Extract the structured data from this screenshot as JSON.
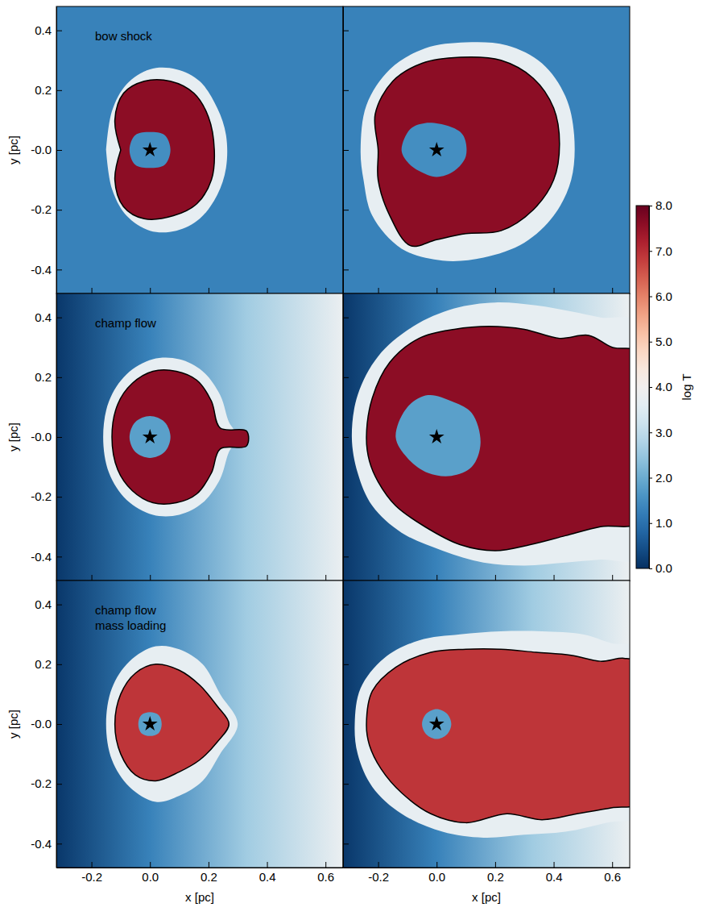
{
  "chart_data": [
    {
      "type": "map",
      "title": "bow shock",
      "ylabel": "y [pc]",
      "xlim": [
        -0.32,
        0.66
      ],
      "ylim": [
        -0.48,
        0.48
      ],
      "xticks": [
        -0.2,
        {
          "value": 0,
          "label": "0.0"
        },
        0.2,
        0.4,
        0.6
      ],
      "yticks": [
        -0.4,
        -0.2,
        {
          "value": 0,
          "label": "-0.0"
        },
        0.2,
        0.4
      ],
      "tick_labels": "y",
      "background_x": [
        -0.32,
        0.66
      ],
      "background_log_t": [
        1.3,
        1.3
      ],
      "shell": {
        "x": [
          -0.15,
          -0.13,
          -0.08,
          0.0,
          0.09,
          0.17,
          0.23,
          0.26,
          0.26,
          0.23,
          0.17,
          0.09,
          0.0,
          -0.08,
          -0.13,
          -0.15
        ],
        "y": [
          0.0,
          0.13,
          0.22,
          0.27,
          0.27,
          0.23,
          0.14,
          0.05,
          -0.06,
          -0.15,
          -0.23,
          -0.27,
          -0.27,
          -0.22,
          -0.13,
          0.0
        ]
      },
      "shell_log_t": 3.7,
      "contour": {
        "x": [
          -0.1,
          -0.12,
          -0.09,
          -0.02,
          0.07,
          0.15,
          0.2,
          0.22,
          0.21,
          0.16,
          0.08,
          -0.02,
          -0.09,
          -0.12,
          -0.1
        ],
        "y": [
          0.0,
          0.1,
          0.19,
          0.23,
          0.23,
          0.19,
          0.11,
          0.0,
          -0.1,
          -0.18,
          -0.22,
          -0.23,
          -0.19,
          -0.1,
          0.0
        ]
      },
      "bubble_log_t": 7.6,
      "wind_region": {
        "x": [
          -0.07,
          -0.05,
          0.0,
          0.05,
          0.07,
          0.05,
          0.0,
          -0.05
        ],
        "y": [
          0.0,
          0.05,
          0.06,
          0.05,
          0.0,
          -0.05,
          -0.06,
          -0.05
        ]
      },
      "wind_log_t": 1.5,
      "star": {
        "x": 0,
        "y": 0
      }
    },
    {
      "type": "map",
      "xlim": [
        -0.32,
        0.66
      ],
      "ylim": [
        -0.48,
        0.48
      ],
      "xticks": [
        -0.2,
        {
          "value": 0,
          "label": "0.0"
        },
        0.2,
        0.4,
        0.6
      ],
      "yticks": [
        -0.4,
        -0.2,
        {
          "value": 0,
          "label": "-0.0"
        },
        0.2,
        0.4
      ],
      "tick_labels": false,
      "background_x": [
        -0.32,
        0.66
      ],
      "background_log_t": [
        1.3,
        1.3
      ],
      "shell": {
        "x": [
          -0.26,
          -0.24,
          -0.16,
          -0.04,
          0.1,
          0.24,
          0.36,
          0.44,
          0.47,
          0.46,
          0.4,
          0.3,
          0.16,
          0.02,
          -0.12,
          -0.22,
          -0.25
        ],
        "y": [
          0.0,
          0.15,
          0.27,
          0.34,
          0.36,
          0.35,
          0.29,
          0.18,
          0.05,
          -0.1,
          -0.22,
          -0.31,
          -0.36,
          -0.37,
          -0.33,
          -0.22,
          -0.1
        ]
      },
      "shell_log_t": 3.7,
      "contour": {
        "x": [
          -0.2,
          -0.21,
          -0.15,
          -0.05,
          0.08,
          0.22,
          0.33,
          0.4,
          0.42,
          0.4,
          0.33,
          0.22,
          0.1,
          0.0,
          -0.09,
          -0.16,
          -0.2
        ],
        "y": [
          0.0,
          0.12,
          0.23,
          0.29,
          0.31,
          0.3,
          0.24,
          0.14,
          0.02,
          -0.1,
          -0.2,
          -0.27,
          -0.28,
          -0.3,
          -0.32,
          -0.22,
          -0.1
        ]
      },
      "bubble_log_t": 7.6,
      "wind_region": {
        "x": [
          -0.12,
          -0.09,
          -0.04,
          0.04,
          0.09,
          0.1,
          0.06,
          0.0,
          -0.06,
          -0.1
        ],
        "y": [
          0.0,
          0.07,
          0.09,
          0.08,
          0.05,
          -0.02,
          -0.07,
          -0.09,
          -0.07,
          -0.04
        ]
      },
      "wind_log_t": 1.5,
      "star": {
        "x": 0,
        "y": 0
      }
    },
    {
      "type": "map",
      "title": "champ flow",
      "ylabel": "y [pc]",
      "xlim": [
        -0.32,
        0.66
      ],
      "ylim": [
        -0.48,
        0.48
      ],
      "xticks": [
        -0.2,
        {
          "value": 0,
          "label": "0.0"
        },
        0.2,
        0.4,
        0.6
      ],
      "yticks": [
        -0.4,
        -0.2,
        {
          "value": 0,
          "label": "-0.0"
        },
        0.2,
        0.4
      ],
      "tick_labels": "y",
      "background_x": [
        -0.32,
        0.0,
        0.33,
        0.66
      ],
      "background_log_t": [
        0.1,
        1.3,
        2.6,
        3.8
      ],
      "shell": {
        "x": [
          -0.16,
          -0.14,
          -0.08,
          0.01,
          0.1,
          0.18,
          0.24,
          0.27,
          0.3,
          0.27,
          0.24,
          0.18,
          0.1,
          0.01,
          -0.08,
          -0.14
        ],
        "y": [
          0.0,
          0.12,
          0.21,
          0.26,
          0.26,
          0.22,
          0.14,
          0.05,
          0.0,
          -0.05,
          -0.14,
          -0.22,
          -0.26,
          -0.26,
          -0.21,
          -0.12
        ]
      },
      "shell_log_t": 3.7,
      "contour": {
        "x": [
          -0.13,
          -0.11,
          -0.06,
          0.01,
          0.09,
          0.16,
          0.21,
          0.24,
          0.33,
          0.33,
          0.24,
          0.21,
          0.16,
          0.09,
          0.01,
          -0.06,
          -0.11
        ],
        "y": [
          0.0,
          0.11,
          0.18,
          0.22,
          0.22,
          0.19,
          0.12,
          0.03,
          0.02,
          -0.03,
          -0.04,
          -0.12,
          -0.19,
          -0.22,
          -0.22,
          -0.18,
          -0.11
        ]
      },
      "bubble_log_t": 7.6,
      "wind_region": {
        "x": [
          -0.07,
          -0.05,
          0.0,
          0.05,
          0.07,
          0.05,
          0.0,
          -0.05
        ],
        "y": [
          0.0,
          0.05,
          0.07,
          0.05,
          0.0,
          -0.05,
          -0.07,
          -0.05
        ]
      },
      "wind_log_t": 1.8,
      "star": {
        "x": 0,
        "y": 0
      }
    },
    {
      "type": "map",
      "xlim": [
        -0.32,
        0.66
      ],
      "ylim": [
        -0.48,
        0.48
      ],
      "xticks": [
        -0.2,
        {
          "value": 0,
          "label": "0.0"
        },
        0.2,
        0.4,
        0.6
      ],
      "yticks": [
        -0.4,
        -0.2,
        {
          "value": 0,
          "label": "-0.0"
        },
        0.2,
        0.4
      ],
      "tick_labels": false,
      "background_x": [
        -0.32,
        0.0,
        0.33,
        0.66
      ],
      "background_log_t": [
        0.1,
        1.3,
        2.6,
        3.8
      ],
      "shell": {
        "x": [
          -0.29,
          -0.27,
          -0.2,
          -0.08,
          0.06,
          0.2,
          0.34,
          0.46,
          0.56,
          0.7,
          0.7,
          0.56,
          0.44,
          0.3,
          0.16,
          0.02,
          -0.12,
          -0.22,
          -0.27
        ],
        "y": [
          0.0,
          0.14,
          0.27,
          0.37,
          0.43,
          0.45,
          0.44,
          0.42,
          0.4,
          0.38,
          -0.4,
          -0.41,
          -0.42,
          -0.43,
          -0.42,
          -0.38,
          -0.32,
          -0.23,
          -0.12
        ]
      },
      "shell_log_t": 3.7,
      "contour": {
        "x": [
          -0.24,
          -0.22,
          -0.16,
          -0.06,
          0.06,
          0.18,
          0.3,
          0.42,
          0.52,
          0.6,
          0.7,
          0.7,
          0.56,
          0.44,
          0.32,
          0.2,
          0.08,
          -0.04,
          -0.14,
          -0.2,
          -0.23
        ],
        "y": [
          0.0,
          0.13,
          0.25,
          0.33,
          0.36,
          0.37,
          0.36,
          0.33,
          0.34,
          0.3,
          0.28,
          -0.28,
          -0.3,
          -0.33,
          -0.36,
          -0.38,
          -0.36,
          -0.3,
          -0.23,
          -0.15,
          -0.08
        ]
      },
      "bubble_log_t": 7.6,
      "wind_region": {
        "x": [
          -0.14,
          -0.1,
          -0.03,
          0.05,
          0.12,
          0.15,
          0.12,
          0.05,
          -0.03,
          -0.1
        ],
        "y": [
          0.0,
          0.1,
          0.14,
          0.12,
          0.08,
          -0.02,
          -0.1,
          -0.13,
          -0.12,
          -0.07
        ]
      },
      "wind_log_t": 1.8,
      "star": {
        "x": 0,
        "y": 0
      }
    },
    {
      "type": "map",
      "title": [
        "champ flow",
        "mass loading"
      ],
      "xlabel": "x [pc]",
      "ylabel": "y [pc]",
      "xlim": [
        -0.32,
        0.66
      ],
      "ylim": [
        -0.48,
        0.48
      ],
      "xticks": [
        -0.2,
        {
          "value": 0,
          "label": "0.0"
        },
        0.2,
        0.4,
        0.6
      ],
      "yticks": [
        -0.4,
        -0.2,
        {
          "value": 0,
          "label": "-0.0"
        },
        0.2,
        0.4
      ],
      "tick_labels": true,
      "background_x": [
        -0.32,
        0.0,
        0.33,
        0.66
      ],
      "background_log_t": [
        0.1,
        1.3,
        2.6,
        3.8
      ],
      "shell": {
        "x": [
          -0.15,
          -0.13,
          -0.07,
          0.02,
          0.1,
          0.18,
          0.24,
          0.3,
          0.24,
          0.18,
          0.1,
          0.02,
          -0.07,
          -0.13
        ],
        "y": [
          0.0,
          0.12,
          0.21,
          0.26,
          0.25,
          0.2,
          0.1,
          0.0,
          -0.1,
          -0.19,
          -0.24,
          -0.26,
          -0.21,
          -0.12
        ]
      },
      "shell_log_t": 3.7,
      "contour": {
        "x": [
          -0.12,
          -0.1,
          -0.05,
          0.02,
          0.1,
          0.17,
          0.23,
          0.27,
          0.23,
          0.17,
          0.1,
          0.02,
          -0.05,
          -0.1
        ],
        "y": [
          0.0,
          0.1,
          0.17,
          0.2,
          0.18,
          0.13,
          0.06,
          0.0,
          -0.06,
          -0.12,
          -0.16,
          -0.19,
          -0.17,
          -0.1
        ]
      },
      "bubble_log_t": 6.9,
      "wind_region": {
        "x": [
          -0.04,
          -0.03,
          0.0,
          0.03,
          0.04,
          0.03,
          0.0,
          -0.03
        ],
        "y": [
          0.0,
          0.03,
          0.04,
          0.03,
          0.0,
          -0.03,
          -0.04,
          -0.03
        ]
      },
      "wind_log_t": 1.8,
      "star": {
        "x": 0,
        "y": 0
      }
    },
    {
      "type": "map",
      "xlabel": "x [pc]",
      "xlim": [
        -0.32,
        0.66
      ],
      "ylim": [
        -0.48,
        0.48
      ],
      "xticks": [
        -0.2,
        {
          "value": 0,
          "label": "0.0"
        },
        0.2,
        0.4,
        0.6
      ],
      "yticks": [
        -0.4,
        -0.2,
        {
          "value": 0,
          "label": "-0.0"
        },
        0.2,
        0.4
      ],
      "tick_labels": "x",
      "background_x": [
        -0.32,
        0.0,
        0.33,
        0.66
      ],
      "background_log_t": [
        0.1,
        1.3,
        2.6,
        3.8
      ],
      "shell": {
        "x": [
          -0.28,
          -0.26,
          -0.18,
          -0.06,
          0.08,
          0.22,
          0.36,
          0.5,
          0.6,
          0.7,
          0.7,
          0.58,
          0.44,
          0.3,
          0.16,
          0.02,
          -0.12,
          -0.22,
          -0.27
        ],
        "y": [
          0.0,
          0.12,
          0.22,
          0.28,
          0.3,
          0.31,
          0.31,
          0.3,
          0.27,
          0.25,
          -0.3,
          -0.33,
          -0.36,
          -0.37,
          -0.38,
          -0.36,
          -0.3,
          -0.21,
          -0.1
        ]
      },
      "shell_log_t": 3.7,
      "contour": {
        "x": [
          -0.24,
          -0.22,
          -0.14,
          -0.02,
          0.1,
          0.22,
          0.34,
          0.46,
          0.56,
          0.64,
          0.7,
          0.7,
          0.6,
          0.48,
          0.36,
          0.24,
          0.1,
          -0.02,
          -0.12,
          -0.19,
          -0.23
        ],
        "y": [
          0.0,
          0.11,
          0.19,
          0.24,
          0.25,
          0.25,
          0.24,
          0.23,
          0.21,
          0.22,
          0.2,
          -0.26,
          -0.28,
          -0.3,
          -0.32,
          -0.3,
          -0.33,
          -0.3,
          -0.23,
          -0.15,
          -0.07
        ]
      },
      "bubble_log_t": 6.9,
      "wind_region": {
        "x": [
          -0.05,
          -0.035,
          0.0,
          0.035,
          0.05,
          0.035,
          0.0,
          -0.035
        ],
        "y": [
          0.0,
          0.035,
          0.05,
          0.035,
          0.0,
          -0.035,
          -0.05,
          -0.035
        ]
      },
      "wind_log_t": 1.8,
      "star": {
        "x": 0,
        "y": 0
      }
    },
    {
      "type": "colorbar",
      "label": "log T",
      "range": [
        0,
        8
      ],
      "ticks": [
        {
          "value": 0,
          "label": "0.0"
        },
        {
          "value": 1,
          "label": "1.0"
        },
        {
          "value": 2,
          "label": "2.0"
        },
        {
          "value": 3,
          "label": "3.0"
        },
        {
          "value": 4,
          "label": "4.0"
        },
        {
          "value": 5,
          "label": "5.0"
        },
        {
          "value": 6,
          "label": "6.0"
        },
        {
          "value": 7,
          "label": "7.0"
        },
        {
          "value": 8,
          "label": "8.0"
        }
      ]
    }
  ]
}
